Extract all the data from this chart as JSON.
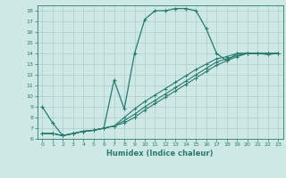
{
  "xlabel": "Humidex (Indice chaleur)",
  "bg_color": "#cde8e5",
  "grid_color": "#aacfcc",
  "line_color": "#2a7a6e",
  "xlim": [
    -0.5,
    23.5
  ],
  "ylim": [
    6,
    18.5
  ],
  "xticks": [
    0,
    1,
    2,
    3,
    4,
    5,
    6,
    7,
    8,
    9,
    10,
    11,
    12,
    13,
    14,
    15,
    16,
    17,
    18,
    19,
    20,
    21,
    22,
    23
  ],
  "yticks": [
    6,
    7,
    8,
    9,
    10,
    11,
    12,
    13,
    14,
    15,
    16,
    17,
    18
  ],
  "s1_x": [
    0,
    1,
    2,
    3,
    4,
    5,
    6,
    7,
    8,
    9,
    10,
    11,
    12,
    13,
    14,
    15,
    16,
    17,
    18,
    19,
    20,
    21,
    22,
    23
  ],
  "s1_y": [
    9.0,
    7.5,
    6.3,
    6.5,
    6.7,
    6.8,
    7.0,
    11.5,
    8.8,
    14.0,
    17.2,
    18.0,
    18.0,
    18.2,
    18.2,
    18.0,
    16.3,
    14.0,
    13.3,
    14.0,
    14.0,
    14.0,
    13.9,
    14.0
  ],
  "s2_x": [
    0,
    1,
    2,
    3,
    4,
    5,
    6,
    7,
    8,
    9,
    10,
    11,
    12,
    13,
    14,
    15,
    16,
    17,
    18,
    19,
    20,
    21,
    22,
    23
  ],
  "s2_y": [
    6.5,
    6.5,
    6.3,
    6.5,
    6.7,
    6.8,
    7.0,
    7.2,
    7.5,
    8.0,
    8.7,
    9.3,
    9.9,
    10.5,
    11.1,
    11.7,
    12.3,
    12.9,
    13.3,
    13.7,
    14.0,
    14.0,
    14.0,
    14.0
  ],
  "s3_x": [
    0,
    1,
    2,
    3,
    4,
    5,
    6,
    7,
    8,
    9,
    10,
    11,
    12,
    13,
    14,
    15,
    16,
    17,
    18,
    19,
    20,
    21,
    22,
    23
  ],
  "s3_y": [
    6.5,
    6.5,
    6.3,
    6.5,
    6.7,
    6.8,
    7.0,
    7.2,
    7.7,
    8.3,
    9.0,
    9.6,
    10.2,
    10.8,
    11.4,
    12.0,
    12.6,
    13.2,
    13.5,
    13.8,
    14.0,
    14.0,
    14.0,
    14.0
  ],
  "s4_x": [
    0,
    1,
    2,
    3,
    4,
    5,
    6,
    7,
    8,
    9,
    10,
    11,
    12,
    13,
    14,
    15,
    16,
    17,
    18,
    19,
    20,
    21,
    22,
    23
  ],
  "s4_y": [
    6.5,
    6.5,
    6.3,
    6.5,
    6.7,
    6.8,
    7.0,
    7.2,
    8.0,
    8.8,
    9.5,
    10.1,
    10.7,
    11.3,
    11.9,
    12.5,
    13.0,
    13.5,
    13.7,
    14.0,
    14.0,
    14.0,
    14.0,
    14.0
  ]
}
